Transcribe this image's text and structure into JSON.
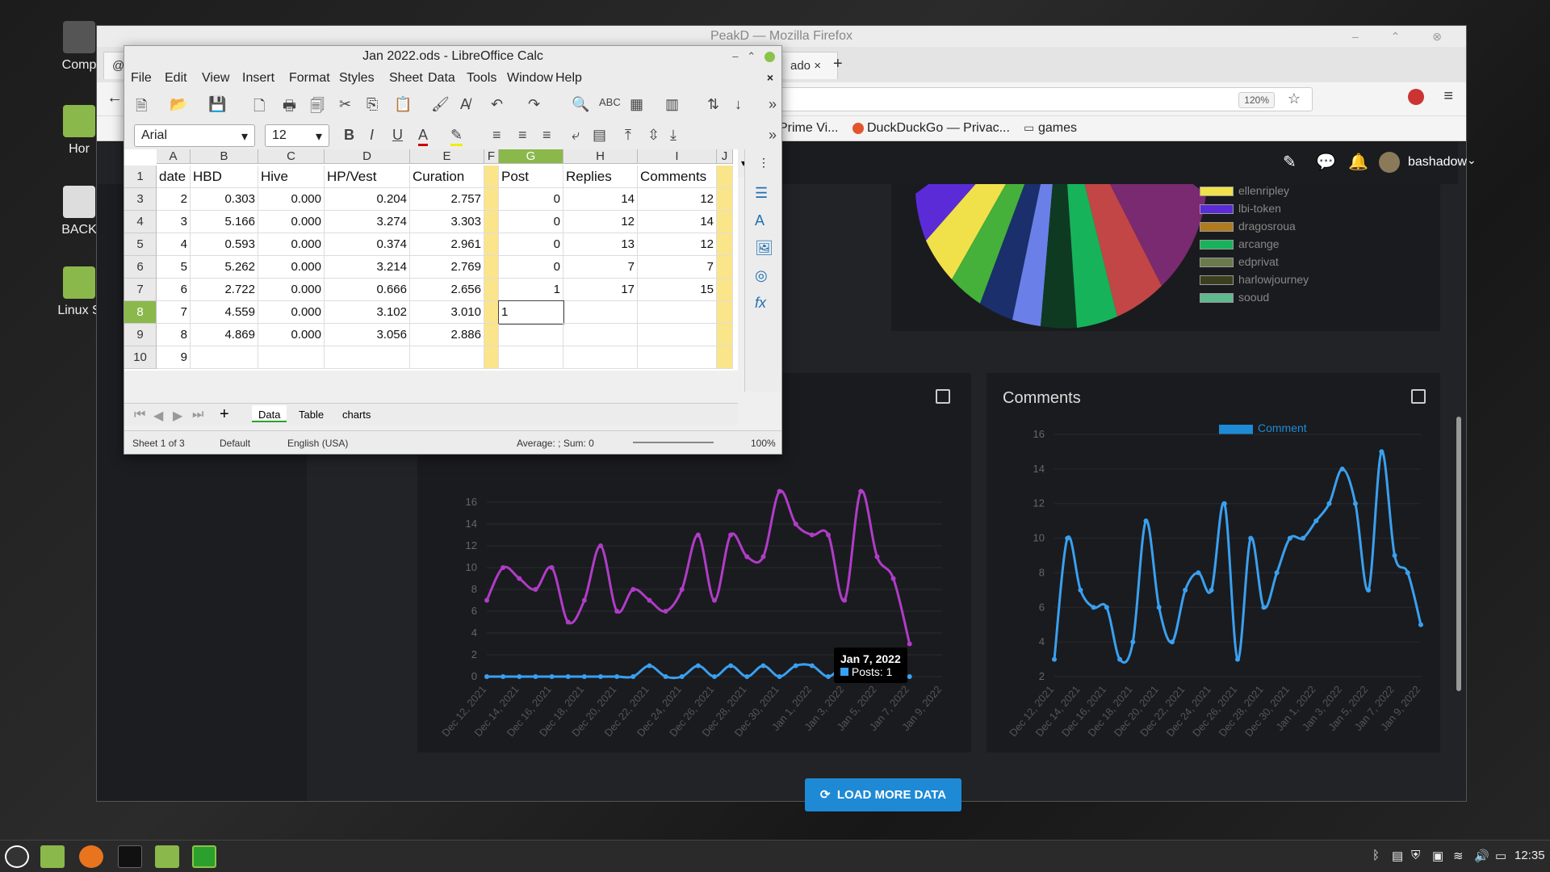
{
  "desktop": {
    "icons": [
      {
        "label": "Comp"
      },
      {
        "label": "Hor"
      },
      {
        "label": "BACK"
      },
      {
        "label": "Linux S"
      }
    ]
  },
  "firefox": {
    "window_title": "PeakD — Mozilla Firefox",
    "tab_partial_1": "@b",
    "tab_partial_2": "ado",
    "zoom": "120%",
    "bookmarks": [
      "Prime Vi...",
      "DuckDuckGo — Privac...",
      "games"
    ],
    "peakd": {
      "username": "bashadow",
      "legend_items": [
        {
          "label": "ellenripley",
          "color": "#f0e14a"
        },
        {
          "label": "lbi-token",
          "color": "#5b2bd8"
        },
        {
          "label": "dragosroua",
          "color": "#b07a1e"
        },
        {
          "label": "arcange",
          "color": "#17b35b"
        },
        {
          "label": "edprivat",
          "color": "#6a7a4a"
        },
        {
          "label": "harlowjourney",
          "color": "#3b3f1e"
        },
        {
          "label": "sooud",
          "color": "#5fb88e"
        }
      ],
      "comments_title": "Comments",
      "comments_legend": "Comment",
      "load_more": "LOAD MORE DATA",
      "tooltip_date": "Jan 7, 2022",
      "tooltip_value": "Posts: 1"
    }
  },
  "chart_data": [
    {
      "type": "line",
      "title": "",
      "x": [
        "Dec 12, 2021",
        "Dec 13, 2021",
        "Dec 14, 2021",
        "Dec 15, 2021",
        "Dec 16, 2021",
        "Dec 17, 2021",
        "Dec 18, 2021",
        "Dec 19, 2021",
        "Dec 20, 2021",
        "Dec 21, 2021",
        "Dec 22, 2021",
        "Dec 23, 2021",
        "Dec 24, 2021",
        "Dec 25, 2021",
        "Dec 26, 2021",
        "Dec 27, 2021",
        "Dec 28, 2021",
        "Dec 29, 2021",
        "Dec 30, 2021",
        "Dec 31, 2021",
        "Jan 1, 2022",
        "Jan 2, 2022",
        "Jan 3, 2022",
        "Jan 4, 2022",
        "Jan 5, 2022",
        "Jan 6, 2022",
        "Jan 7, 2022",
        "Jan 8, 2022",
        "Jan 9, 2022",
        "Jan 10, 2022"
      ],
      "tick_labels": [
        "Dec 12, 2021",
        "Dec 14, 2021",
        "Dec 16, 2021",
        "Dec 18, 2021",
        "Dec 20, 2021",
        "Dec 22, 2021",
        "Dec 24, 2021",
        "Dec 26, 2021",
        "Dec 28, 2021",
        "Dec 30, 2021",
        "Jan 1, 2022",
        "Jan 3, 2022",
        "Jan 5, 2022",
        "Jan 7, 2022",
        "Jan 9, 2022"
      ],
      "y_ticks": [
        0,
        2,
        4,
        6,
        8,
        10,
        12,
        14,
        16
      ],
      "ylim": [
        0,
        16
      ],
      "series": [
        {
          "color": "#b03cc8",
          "values": [
            7,
            10,
            9,
            8,
            10,
            5,
            7,
            12,
            6,
            8,
            7,
            6,
            8,
            13,
            7,
            13,
            11,
            11,
            17,
            14,
            13,
            13,
            7,
            17,
            11,
            9,
            3,
            null,
            null,
            null
          ]
        },
        {
          "color": "#3aa0f0",
          "values": [
            0,
            0,
            0,
            0,
            0,
            0,
            0,
            0,
            0,
            0,
            1,
            0,
            0,
            1,
            0,
            1,
            0,
            1,
            0,
            1,
            1,
            0,
            1,
            0,
            1,
            0,
            0,
            null,
            null,
            null
          ]
        }
      ]
    },
    {
      "type": "line",
      "title": "Comments",
      "tick_labels": [
        "Dec 12, 2021",
        "Dec 14, 2021",
        "Dec 16, 2021",
        "Dec 18, 2021",
        "Dec 20, 2021",
        "Dec 22, 2021",
        "Dec 24, 2021",
        "Dec 26, 2021",
        "Dec 28, 2021",
        "Dec 30, 2021",
        "Jan 1, 2022",
        "Jan 3, 2022",
        "Jan 5, 2022",
        "Jan 7, 2022",
        "Jan 9, 2022"
      ],
      "y_ticks": [
        2,
        4,
        6,
        8,
        10,
        12,
        14,
        16
      ],
      "ylim": [
        2,
        16
      ],
      "series": [
        {
          "name": "Comment",
          "color": "#3aa0f0",
          "values": [
            3,
            10,
            7,
            6,
            6,
            3,
            4,
            11,
            6,
            4,
            7,
            8,
            7,
            12,
            3,
            10,
            6,
            8,
            10,
            10,
            11,
            12,
            14,
            12,
            7,
            15,
            9,
            8,
            5
          ]
        }
      ]
    }
  ],
  "calc": {
    "title": "Jan 2022.ods - LibreOffice Calc",
    "menu": [
      "File",
      "Edit",
      "View",
      "Insert",
      "Format",
      "Styles",
      "Sheet",
      "Data",
      "Tools",
      "Window",
      "Help"
    ],
    "font_name": "Arial",
    "font_size": "12",
    "name_box": "G8",
    "formula_value": "1",
    "columns": [
      "A",
      "B",
      "C",
      "D",
      "E",
      "F",
      "G",
      "H",
      "I",
      "J"
    ],
    "header_row": [
      "date",
      "HBD",
      "Hive",
      "HP/Vest",
      "Curation",
      "",
      "Post",
      "Replies",
      "Comments",
      ""
    ],
    "rows": [
      {
        "num": "3",
        "cells": [
          "2",
          "0.303",
          "0.000",
          "0.204",
          "2.757",
          "",
          "0",
          "14",
          "12"
        ]
      },
      {
        "num": "4",
        "cells": [
          "3",
          "5.166",
          "0.000",
          "3.274",
          "3.303",
          "",
          "0",
          "12",
          "14"
        ]
      },
      {
        "num": "5",
        "cells": [
          "4",
          "0.593",
          "0.000",
          "0.374",
          "2.961",
          "",
          "0",
          "13",
          "12"
        ]
      },
      {
        "num": "6",
        "cells": [
          "5",
          "5.262",
          "0.000",
          "3.214",
          "2.769",
          "",
          "0",
          "7",
          "7"
        ]
      },
      {
        "num": "7",
        "cells": [
          "6",
          "2.722",
          "0.000",
          "0.666",
          "2.656",
          "",
          "1",
          "17",
          "15"
        ]
      },
      {
        "num": "8",
        "cells": [
          "7",
          "4.559",
          "0.000",
          "3.102",
          "3.010",
          "",
          "1",
          "",
          ""
        ]
      },
      {
        "num": "9",
        "cells": [
          "8",
          "4.869",
          "0.000",
          "3.056",
          "2.886",
          "",
          "",
          "",
          ""
        ]
      },
      {
        "num": "10",
        "cells": [
          "9",
          "",
          "",
          "",
          "",
          "",
          "",
          "",
          ""
        ]
      }
    ],
    "sheet_tabs": [
      "Data",
      "Table",
      "charts"
    ],
    "status": {
      "sheet": "Sheet 1 of 3",
      "style": "Default",
      "language": "English (USA)",
      "summary": "Average: ; Sum: 0",
      "zoom": "100%"
    }
  },
  "taskbar": {
    "clock": "12:35"
  }
}
